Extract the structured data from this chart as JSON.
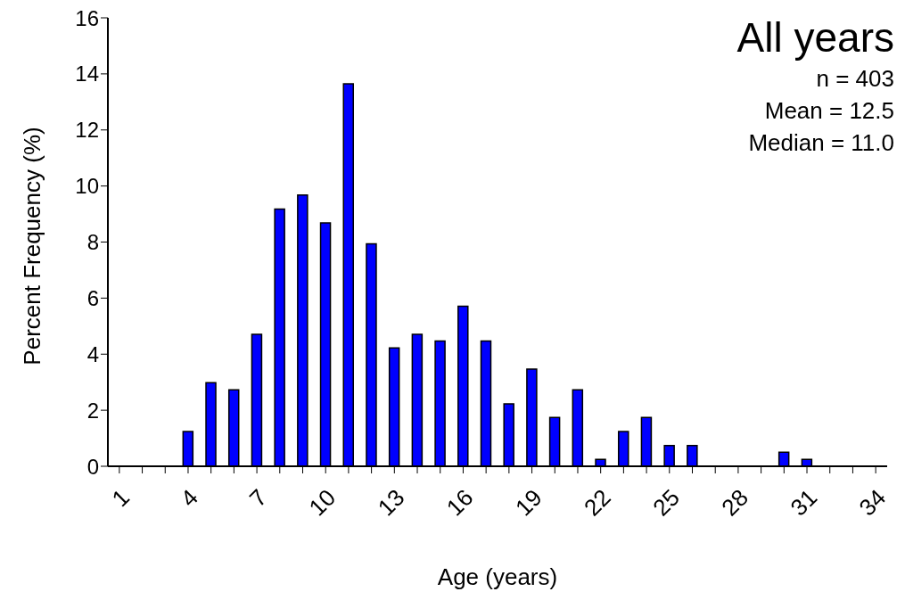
{
  "chart_data": {
    "type": "bar",
    "title": "All years",
    "xlabel": "Age (years)",
    "ylabel": "Percent Frequency (%)",
    "annotations": [
      "n = 403",
      "Mean = 12.5",
      "Median = 11.0"
    ],
    "categories": [
      "1",
      null,
      null,
      "4",
      null,
      null,
      "7",
      null,
      null,
      "10",
      null,
      null,
      "13",
      null,
      null,
      "16",
      null,
      null,
      "19",
      null,
      null,
      "22",
      null,
      null,
      "25",
      null,
      null,
      "28",
      null,
      null,
      "31",
      null,
      null,
      "34"
    ],
    "values": [
      0,
      0,
      0,
      1.24,
      2.98,
      2.73,
      4.71,
      9.18,
      9.68,
      8.68,
      13.65,
      7.94,
      4.22,
      4.71,
      4.47,
      5.71,
      4.47,
      2.23,
      3.47,
      1.74,
      2.73,
      0.25,
      1.24,
      1.74,
      0.74,
      0.74,
      0,
      0,
      0,
      0.5,
      0.25,
      0,
      0,
      0
    ],
    "color": "#0000ff",
    "ylim": [
      0,
      16
    ],
    "yticks": [
      0,
      2,
      4,
      6,
      8,
      10,
      12,
      14,
      16
    ],
    "grid": false,
    "legend": false
  }
}
